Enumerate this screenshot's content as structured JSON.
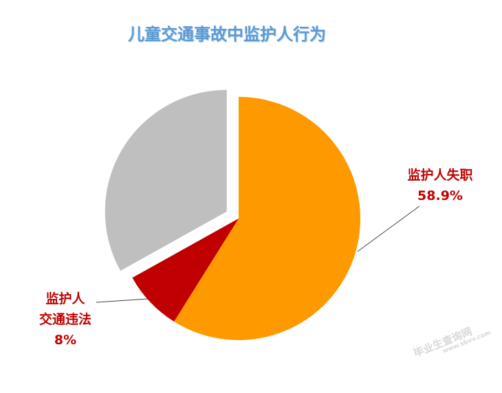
{
  "chart_data": {
    "type": "pie",
    "title": "儿童交通事故中监护人行为",
    "slices": [
      {
        "label_lines": [
          "监护人失职",
          "58.9%"
        ],
        "value": 58.9,
        "color": "#ff9900",
        "exploded": false
      },
      {
        "label_lines": [
          "监护人",
          "交通违法",
          "8%"
        ],
        "value": 8,
        "color": "#c00000",
        "exploded": false
      },
      {
        "label_lines": [],
        "value": 33.1,
        "color": "#bfbfbf",
        "exploded": true
      }
    ]
  },
  "watermark": {
    "text": "毕业生查询网",
    "sub": "www.sbvv.com"
  }
}
